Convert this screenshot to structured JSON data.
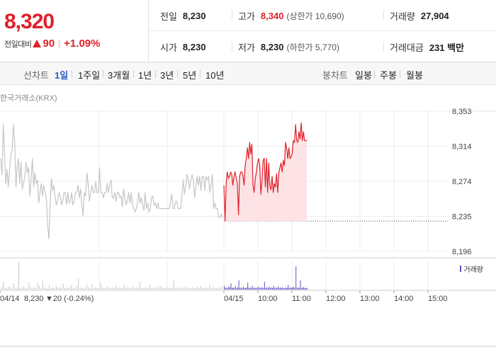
{
  "price": {
    "current": "8,320",
    "change_label": "전일대비",
    "change_icon": "up-triangle-icon",
    "change_abs": "90",
    "change_pct": "+1.09%",
    "color_up": "#e0202a",
    "color_down": "#1f62d6"
  },
  "summary": {
    "row1": [
      {
        "label": "전일",
        "value": "8,230"
      },
      {
        "label": "고가",
        "value": "8,340",
        "sub": "(상한가 10,690)"
      },
      {
        "label": "거래량",
        "value": "27,904"
      }
    ],
    "row2": [
      {
        "label": "시가",
        "value": "8,230"
      },
      {
        "label": "저가",
        "value": "8,230",
        "sub": "(하한가 5,770)"
      },
      {
        "label": "거래대금",
        "value": "231 백만"
      }
    ]
  },
  "toolbar": {
    "line_label": "선차트",
    "line_periods": [
      "1일",
      "1주일",
      "3개월",
      "1년",
      "3년",
      "5년",
      "10년"
    ],
    "active_period": "1일",
    "candle_label": "봉차트",
    "candle_periods": [
      "일봉",
      "주봉",
      "월봉"
    ]
  },
  "exchange": "한국거래소(KRX)",
  "volume_legend": "거래량",
  "chart_data": {
    "type": "line",
    "ylim": [
      8196,
      8353
    ],
    "y_ticks": [
      "8,353",
      "8,314",
      "8,274",
      "8,235",
      "8,196"
    ],
    "x_ticks": [
      "04/14",
      "04/15",
      "10:00",
      "11:00",
      "12:00",
      "13:00",
      "14:00",
      "15:00"
    ],
    "prev_close": 8230,
    "prev_day_note": {
      "date": "04/14",
      "close": "8,230",
      "change": "▼20 (-0.24%)"
    },
    "series": [
      {
        "day": "04/14",
        "color": "#c6c6c6",
        "values": [
          8300,
          8282,
          8338,
          8304,
          8272,
          8288,
          8268,
          8288,
          8304,
          8310,
          8338,
          8318,
          8268,
          8290,
          8300,
          8272,
          8296,
          8266,
          8272,
          8280,
          8296,
          8284,
          8290,
          8258,
          8276,
          8300,
          8268,
          8284,
          8272,
          8276,
          8250,
          8262,
          8272,
          8258,
          8270,
          8262,
          8256,
          8226,
          8210,
          8248,
          8278,
          8264,
          8270,
          8256,
          8248,
          8254,
          8262,
          8258,
          8248,
          8252,
          8262,
          8262,
          8248,
          8262,
          8250,
          8252,
          8262,
          8248,
          8252,
          8262,
          8262,
          8270,
          8256,
          8266,
          8248,
          8236,
          8262,
          8258,
          8284,
          8272,
          8252,
          8262,
          8270,
          8262,
          8262,
          8274,
          8262,
          8262,
          8290,
          8262,
          8262,
          8256,
          8262,
          8262,
          8272,
          8262,
          8270,
          8276,
          8256,
          8256,
          8262,
          8252,
          8262,
          8262,
          8256,
          8258,
          8246,
          8266,
          8256,
          8248,
          8254,
          8262,
          8250,
          8262,
          8248,
          8244,
          8240,
          8244,
          8252,
          8262,
          8250,
          8256,
          8248,
          8242,
          8262,
          8244,
          8250,
          8240,
          8244,
          8256,
          8258,
          8248,
          8250,
          8244,
          8250,
          8244,
          8244,
          8244,
          8244,
          8244,
          8244,
          8244,
          8244,
          8244,
          8252,
          8260,
          8244,
          8244,
          8252,
          8252,
          8244,
          8244,
          8244,
          8260,
          8276,
          8260,
          8270,
          8282,
          8276,
          8266,
          8276,
          8282,
          8276,
          8256,
          8268,
          8280,
          8270,
          8280,
          8264,
          8280,
          8280,
          8264,
          8280,
          8276,
          8280,
          8262,
          8270,
          8282,
          8244,
          8250,
          8244,
          8244,
          8234,
          8234,
          8238,
          8234
        ]
      },
      {
        "day": "04/15",
        "color": "#e0202a",
        "values": [
          8270,
          8230,
          8272,
          8285,
          8278,
          8280,
          8285,
          8282,
          8270,
          8280,
          8285,
          8278,
          8272,
          8237,
          8280,
          8285,
          8285,
          8281,
          8270,
          8292,
          8300,
          8312,
          8300,
          8318,
          8305,
          8316,
          8270,
          8262,
          8278,
          8285,
          8295,
          8300,
          8292,
          8260,
          8275,
          8298,
          8300,
          8268,
          8300,
          8262,
          8295,
          8270,
          8265,
          8280,
          8262,
          8272,
          8268,
          8283,
          8262,
          8284,
          8290,
          8295,
          8285,
          8298,
          8292,
          8318,
          8312,
          8300,
          8312,
          8300,
          8302,
          8306,
          8320,
          8318,
          8338,
          8320,
          8318,
          8330,
          8322,
          8340,
          8320,
          8330,
          8320,
          8320,
          8320
        ]
      }
    ],
    "volume": {
      "color_prev": "#c6c6c6",
      "color_today": "#6a4fc2",
      "prev": [
        3,
        10,
        2,
        2,
        4,
        3,
        2,
        8,
        2,
        3,
        35,
        2,
        3,
        4,
        2,
        2,
        9,
        3,
        2,
        3,
        2,
        8,
        5,
        2,
        12,
        3,
        2,
        2,
        6,
        2,
        3,
        2,
        4,
        2,
        3,
        2,
        8,
        2,
        3,
        2,
        3,
        6,
        2,
        2,
        4,
        14,
        2,
        3,
        2,
        2,
        6,
        3,
        2,
        7,
        2,
        3,
        2,
        2,
        9,
        3,
        2,
        2,
        4,
        2,
        2,
        3,
        2,
        5,
        2,
        3,
        2,
        2,
        6,
        2,
        3,
        2,
        2,
        4,
        2,
        3,
        2,
        10,
        2,
        2,
        3,
        2,
        2,
        6,
        2,
        3,
        2,
        4,
        2,
        5,
        3,
        2,
        2,
        3,
        2,
        3,
        2,
        12,
        2,
        3,
        2,
        2,
        3,
        2,
        4,
        2,
        3,
        2,
        3,
        2,
        2,
        4,
        2,
        5,
        2,
        2,
        3,
        2,
        6,
        2,
        3,
        2,
        2,
        3,
        2,
        4
      ],
      "today": [
        5,
        2,
        3,
        2,
        4,
        3,
        8,
        2,
        3,
        2,
        5,
        2,
        3,
        12,
        2,
        3,
        2,
        4,
        2,
        2,
        3,
        9,
        2,
        3,
        2,
        5,
        2,
        3,
        2,
        2,
        4,
        2,
        3,
        2,
        3,
        2,
        10,
        2,
        3,
        2,
        4,
        2,
        3,
        2,
        5,
        2,
        3,
        2,
        4,
        2,
        3,
        2,
        3,
        2,
        2,
        3,
        2,
        6,
        2,
        3,
        2,
        3,
        4,
        2,
        30,
        2,
        3,
        2,
        12,
        2,
        3,
        3,
        2,
        2,
        2
      ]
    }
  }
}
